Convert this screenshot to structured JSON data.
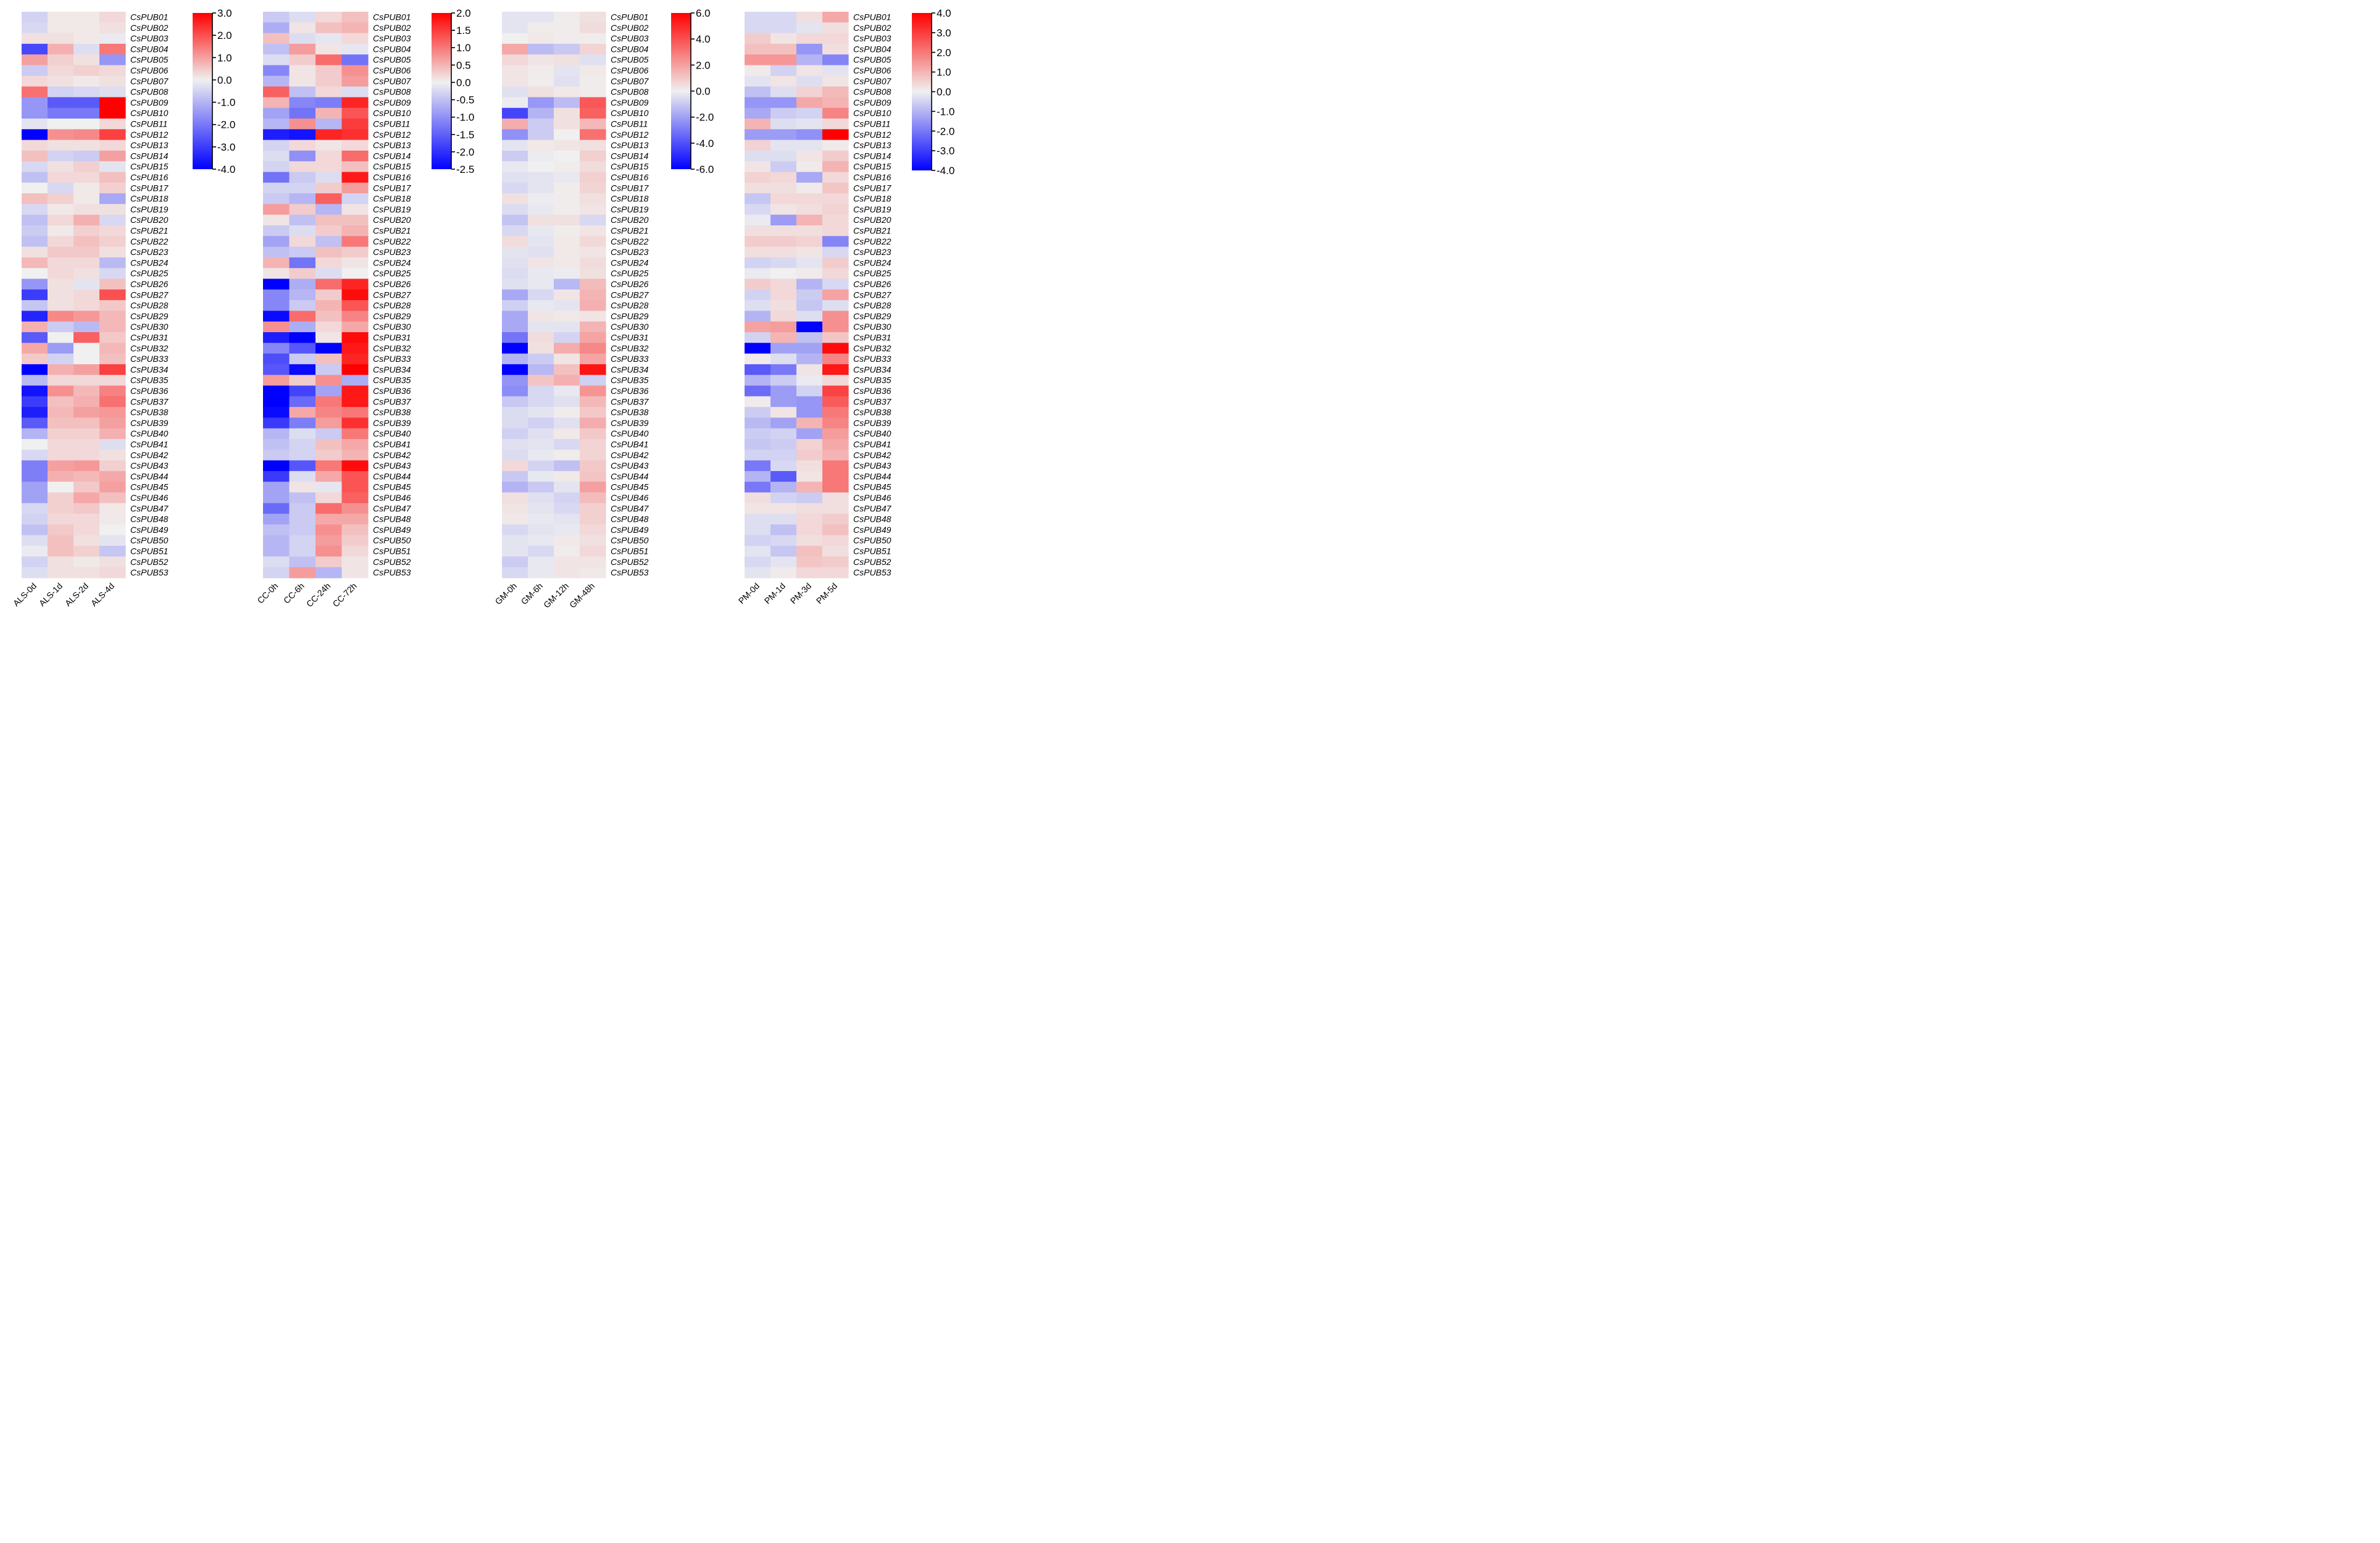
{
  "genes": [
    "CsPUB01",
    "CsPUB02",
    "CsPUB03",
    "CsPUB04",
    "CsPUB05",
    "CsPUB06",
    "CsPUB07",
    "CsPUB08",
    "CsPUB09",
    "CsPUB10",
    "CsPUB11",
    "CsPUB12",
    "CsPUB13",
    "CsPUB14",
    "CsPUB15",
    "CsPUB16",
    "CsPUB17",
    "CsPUB18",
    "CsPUB19",
    "CsPUB20",
    "CsPUB21",
    "CsPUB22",
    "CsPUB23",
    "CsPUB24",
    "CsPUB25",
    "CsPUB26",
    "CsPUB27",
    "CsPUB28",
    "CsPUB29",
    "CsPUB30",
    "CsPUB31",
    "CsPUB32",
    "CsPUB33",
    "CsPUB34",
    "CsPUB35",
    "CsPUB36",
    "CsPUB37",
    "CsPUB38",
    "CsPUB39",
    "CsPUB40",
    "CsPUB41",
    "CsPUB42",
    "CsPUB43",
    "CsPUB44",
    "CsPUB45",
    "CsPUB46",
    "CsPUB47",
    "CsPUB48",
    "CsPUB49",
    "CsPUB50",
    "CsPUB51",
    "CsPUB52",
    "CsPUB53"
  ],
  "colors": {
    "low": "#0000ff",
    "mid": "#f0f0f0",
    "high": "#ff0000"
  },
  "chart_data": [
    {
      "type": "heatmap",
      "columns": [
        "ALS-0d",
        "ALS-1d",
        "ALS-2d",
        "ALS-4d"
      ],
      "colorbar": {
        "min": -4.0,
        "max": 3.0,
        "ticks": [
          "3.0",
          "2.0",
          "1.0",
          "0.0",
          "-1.0",
          "-2.0",
          "-3.0",
          "-4.0"
        ]
      },
      "values": [
        [
          -0.5,
          0.1,
          0.1,
          0.3
        ],
        [
          -0.4,
          0.1,
          0.1,
          0.2
        ],
        [
          0.2,
          0.2,
          0.1,
          -0.1
        ],
        [
          -2.8,
          0.8,
          -0.3,
          1.5
        ],
        [
          1.0,
          0.4,
          0.2,
          -1.5
        ],
        [
          -0.6,
          0.3,
          0.4,
          0.3
        ],
        [
          0.3,
          0.2,
          0.1,
          0.2
        ],
        [
          1.6,
          -0.5,
          -0.4,
          -0.3
        ],
        [
          -1.5,
          -2.5,
          -2.5,
          3.0
        ],
        [
          -1.5,
          -2.0,
          -2.0,
          3.0
        ],
        [
          -0.2,
          0.0,
          0.0,
          0.3
        ],
        [
          -4.0,
          1.2,
          1.3,
          2.2
        ],
        [
          0.3,
          0.2,
          0.2,
          0.3
        ],
        [
          0.6,
          -0.5,
          -0.6,
          1.0
        ],
        [
          -0.4,
          0.2,
          0.4,
          -0.2
        ],
        [
          -0.8,
          0.3,
          0.3,
          0.6
        ],
        [
          0.0,
          -0.4,
          0.1,
          0.4
        ],
        [
          0.6,
          0.4,
          0.1,
          -1.2
        ],
        [
          -0.4,
          0.1,
          0.2,
          0.2
        ],
        [
          -0.8,
          0.3,
          0.8,
          -0.4
        ],
        [
          -0.6,
          0.1,
          0.4,
          0.3
        ],
        [
          -0.8,
          0.3,
          0.6,
          0.4
        ],
        [
          0.2,
          0.5,
          0.5,
          0.2
        ],
        [
          0.7,
          0.3,
          0.3,
          -0.9
        ],
        [
          0.0,
          0.3,
          0.2,
          -0.4
        ],
        [
          -1.5,
          0.2,
          -0.2,
          0.6
        ],
        [
          -3.0,
          0.2,
          0.3,
          2.0
        ],
        [
          -0.7,
          0.2,
          0.3,
          0.5
        ],
        [
          -3.4,
          1.3,
          1.1,
          0.7
        ],
        [
          0.8,
          -0.6,
          -0.9,
          0.7
        ],
        [
          -2.5,
          0.0,
          1.8,
          0.5
        ],
        [
          0.9,
          -1.4,
          0.0,
          0.7
        ],
        [
          0.5,
          -0.5,
          0.0,
          0.6
        ],
        [
          -4.0,
          0.8,
          1.0,
          2.2
        ],
        [
          -0.9,
          0.3,
          0.3,
          0.3
        ],
        [
          -3.7,
          1.2,
          0.7,
          1.4
        ],
        [
          -3.0,
          0.6,
          0.8,
          1.6
        ],
        [
          -3.5,
          0.7,
          1.0,
          1.1
        ],
        [
          -2.5,
          0.6,
          0.6,
          1.0
        ],
        [
          -1.0,
          0.4,
          0.4,
          0.8
        ],
        [
          0.0,
          0.3,
          0.3,
          -0.3
        ],
        [
          -0.4,
          0.3,
          0.3,
          0.2
        ],
        [
          -1.9,
          1.0,
          1.1,
          0.4
        ],
        [
          -1.9,
          0.8,
          0.7,
          0.9
        ],
        [
          -1.3,
          0.0,
          0.5,
          1.0
        ],
        [
          -1.3,
          0.4,
          0.9,
          0.6
        ],
        [
          -0.4,
          0.4,
          0.5,
          0.1
        ],
        [
          -0.5,
          0.3,
          0.3,
          0.1
        ],
        [
          -0.8,
          0.5,
          0.3,
          0.0
        ],
        [
          -0.3,
          0.6,
          0.2,
          -0.2
        ],
        [
          -0.1,
          0.6,
          0.4,
          -0.7
        ],
        [
          -0.5,
          0.2,
          0.1,
          0.2
        ],
        [
          -0.3,
          0.2,
          0.2,
          0.3
        ]
      ]
    },
    {
      "type": "heatmap",
      "columns": [
        "CC-0h",
        "CC-6h",
        "CC-24h",
        "CC-72h"
      ],
      "colorbar": {
        "min": -2.5,
        "max": 2.0,
        "ticks": [
          "2.0",
          "1.5",
          "1.0",
          "0.5",
          "0.0",
          "-0.5",
          "-1.0",
          "-1.5",
          "-2.0",
          "-2.5"
        ]
      },
      "values": [
        [
          -0.4,
          -0.2,
          0.2,
          0.4
        ],
        [
          -0.7,
          0.1,
          0.4,
          0.5
        ],
        [
          0.4,
          -0.2,
          -0.1,
          0.2
        ],
        [
          -0.5,
          0.7,
          0.1,
          -0.1
        ],
        [
          -0.2,
          0.3,
          1.1,
          -1.3
        ],
        [
          -1.1,
          0.1,
          0.3,
          0.8
        ],
        [
          -0.6,
          0.1,
          0.3,
          0.7
        ],
        [
          1.2,
          -0.5,
          0.2,
          -0.2
        ],
        [
          0.5,
          -1.1,
          -1.2,
          1.7
        ],
        [
          -0.8,
          -1.3,
          0.5,
          1.3
        ],
        [
          -0.6,
          0.8,
          -0.6,
          1.5
        ],
        [
          -2.2,
          -2.3,
          1.7,
          1.6
        ],
        [
          -0.3,
          0.2,
          0.1,
          0.2
        ],
        [
          -0.2,
          -1.0,
          0.2,
          1.1
        ],
        [
          -0.3,
          0.2,
          0.2,
          0.4
        ],
        [
          -1.3,
          -0.4,
          -0.2,
          1.8
        ],
        [
          -0.3,
          -0.3,
          0.3,
          0.7
        ],
        [
          -0.4,
          -0.6,
          1.2,
          -0.3
        ],
        [
          0.7,
          0.3,
          -0.6,
          0.1
        ],
        [
          0.1,
          -0.5,
          0.4,
          0.4
        ],
        [
          -0.4,
          -0.2,
          0.3,
          0.5
        ],
        [
          -0.8,
          0.2,
          -0.5,
          1.0
        ],
        [
          -0.5,
          -0.4,
          0.4,
          0.3
        ],
        [
          0.5,
          -1.3,
          0.2,
          0.1
        ],
        [
          0.1,
          0.3,
          -0.2,
          0.0
        ],
        [
          -2.5,
          -0.7,
          1.1,
          1.7
        ],
        [
          -1.1,
          -0.6,
          0.3,
          1.9
        ],
        [
          -1.1,
          -0.4,
          0.5,
          1.3
        ],
        [
          -2.4,
          1.1,
          0.4,
          0.9
        ],
        [
          0.8,
          -0.7,
          0.2,
          0.6
        ],
        [
          -2.2,
          -2.5,
          0.1,
          1.9
        ],
        [
          -1.1,
          -1.6,
          -2.5,
          1.8
        ],
        [
          -1.7,
          -0.4,
          0.4,
          1.7
        ],
        [
          -1.6,
          -2.4,
          -0.4,
          2.0
        ],
        [
          0.7,
          0.3,
          0.8,
          -0.7
        ],
        [
          -2.5,
          -1.8,
          -0.8,
          1.8
        ],
        [
          -2.5,
          -1.4,
          1.0,
          1.8
        ],
        [
          -2.4,
          0.6,
          0.9,
          1.0
        ],
        [
          -1.9,
          -1.2,
          0.7,
          1.6
        ],
        [
          -0.6,
          -0.2,
          -0.4,
          1.0
        ],
        [
          -0.5,
          -0.3,
          0.4,
          0.6
        ],
        [
          -0.4,
          -0.3,
          0.3,
          0.5
        ],
        [
          -2.5,
          -1.6,
          1.0,
          1.9
        ],
        [
          -1.9,
          -0.2,
          0.6,
          1.3
        ],
        [
          -0.8,
          0.1,
          -0.1,
          1.3
        ],
        [
          -0.8,
          -0.5,
          0.2,
          1.2
        ],
        [
          -1.4,
          -0.4,
          1.1,
          0.8
        ],
        [
          -0.8,
          -0.4,
          0.6,
          0.6
        ],
        [
          -0.5,
          -0.4,
          0.8,
          0.4
        ],
        [
          -0.6,
          -0.3,
          0.7,
          0.3
        ],
        [
          -0.6,
          -0.3,
          0.8,
          0.2
        ],
        [
          -0.2,
          -0.5,
          0.3,
          0.1
        ],
        [
          -0.3,
          0.7,
          -0.6,
          0.1
        ]
      ]
    },
    {
      "type": "heatmap",
      "columns": [
        "GM-0h",
        "GM-6h",
        "GM-12h",
        "GM-48h"
      ],
      "colorbar": {
        "min": -6.0,
        "max": 6.0,
        "ticks": [
          "6.0",
          "4.0",
          "2.0",
          "0.0",
          "-2.0",
          "-4.0",
          "-6.0"
        ]
      },
      "values": [
        [
          -0.3,
          -0.3,
          0.1,
          0.4
        ],
        [
          -0.3,
          0.1,
          0.1,
          0.5
        ],
        [
          0.0,
          0.2,
          0.1,
          0.1
        ],
        [
          1.8,
          -1.3,
          -1.0,
          0.7
        ],
        [
          0.6,
          0.3,
          0.4,
          -0.4
        ],
        [
          0.3,
          0.1,
          -0.3,
          0.2
        ],
        [
          0.3,
          0.1,
          -0.4,
          0.1
        ],
        [
          -0.4,
          0.4,
          0.2,
          0.1
        ],
        [
          -0.1,
          -2.2,
          -1.3,
          3.8
        ],
        [
          -4.3,
          -1.5,
          0.4,
          3.6
        ],
        [
          1.7,
          -0.9,
          0.4,
          1.4
        ],
        [
          -2.4,
          -0.9,
          0.0,
          3.2
        ],
        [
          -0.3,
          0.2,
          0.3,
          0.4
        ],
        [
          -0.9,
          -0.1,
          0.0,
          0.8
        ],
        [
          -0.2,
          0.0,
          0.1,
          0.5
        ],
        [
          -0.4,
          -0.3,
          -0.2,
          0.8
        ],
        [
          -0.6,
          -0.3,
          0.1,
          0.7
        ],
        [
          0.4,
          -0.1,
          0.1,
          0.4
        ],
        [
          -0.5,
          -0.2,
          0.1,
          0.3
        ],
        [
          -1.1,
          0.4,
          0.4,
          -0.6
        ],
        [
          -0.6,
          -0.2,
          0.1,
          0.3
        ],
        [
          0.5,
          -0.3,
          0.2,
          0.6
        ],
        [
          -0.3,
          -0.4,
          0.2,
          0.3
        ],
        [
          -0.4,
          0.3,
          0.2,
          0.5
        ],
        [
          -0.5,
          -0.2,
          -0.1,
          0.4
        ],
        [
          -0.4,
          -0.2,
          -1.4,
          1.3
        ],
        [
          -1.8,
          -0.6,
          0.3,
          1.5
        ],
        [
          -0.8,
          -0.2,
          -0.3,
          1.6
        ],
        [
          -1.8,
          0.3,
          0.2,
          0.3
        ],
        [
          -1.8,
          -0.3,
          -0.3,
          1.5
        ],
        [
          -3.1,
          0.5,
          -0.7,
          1.9
        ],
        [
          -6.0,
          0.4,
          1.7,
          2.6
        ],
        [
          -1.5,
          -0.9,
          0.3,
          1.9
        ],
        [
          -6.0,
          -1.4,
          1.2,
          5.5
        ],
        [
          -2.3,
          1.1,
          1.6,
          -0.8
        ],
        [
          -2.5,
          -0.6,
          -0.2,
          2.3
        ],
        [
          -1.0,
          -0.6,
          -0.4,
          1.4
        ],
        [
          -0.5,
          -0.3,
          0.1,
          1.0
        ],
        [
          -0.5,
          -0.8,
          -0.4,
          1.7
        ],
        [
          -0.8,
          -0.4,
          0.2,
          1.0
        ],
        [
          -0.4,
          -0.3,
          -0.6,
          0.7
        ],
        [
          -0.5,
          -0.2,
          0.1,
          0.7
        ],
        [
          0.6,
          -0.7,
          -1.2,
          1.0
        ],
        [
          -1.0,
          -0.2,
          0.2,
          1.1
        ],
        [
          -1.5,
          -1.0,
          -0.3,
          2.0
        ],
        [
          0.4,
          -0.4,
          -0.7,
          1.3
        ],
        [
          0.3,
          -0.3,
          -0.6,
          0.8
        ],
        [
          0.2,
          -0.2,
          -0.3,
          0.8
        ],
        [
          -0.6,
          -0.3,
          -0.2,
          0.6
        ],
        [
          -0.3,
          -0.2,
          0.2,
          0.4
        ],
        [
          -0.3,
          -0.6,
          0.1,
          0.6
        ],
        [
          -0.9,
          -0.2,
          0.3,
          0.3
        ],
        [
          -0.6,
          -0.2,
          0.3,
          0.2
        ]
      ]
    },
    {
      "type": "heatmap",
      "columns": [
        "PM-0d",
        "PM-1d",
        "PM-3d",
        "PM-5d"
      ],
      "colorbar": {
        "min": -4.0,
        "max": 4.0,
        "ticks": [
          "4.0",
          "3.0",
          "2.0",
          "1.0",
          "0.0",
          "-1.0",
          "-2.0",
          "-3.0",
          "-4.0"
        ]
      },
      "values": [
        [
          -0.4,
          -0.4,
          0.3,
          1.2
        ],
        [
          -0.4,
          -0.4,
          -0.2,
          0.3
        ],
        [
          0.6,
          0.2,
          0.4,
          0.4
        ],
        [
          0.8,
          0.8,
          -1.5,
          0.3
        ],
        [
          1.5,
          1.5,
          -1.0,
          -1.8
        ],
        [
          0.1,
          -0.5,
          0.2,
          -0.2
        ],
        [
          -0.2,
          0.2,
          -0.3,
          0.2
        ],
        [
          -0.8,
          -0.3,
          0.5,
          0.9
        ],
        [
          -1.5,
          -1.5,
          1.2,
          1.0
        ],
        [
          -1.2,
          -0.6,
          -0.5,
          1.8
        ],
        [
          1.0,
          -0.3,
          -0.2,
          0.4
        ],
        [
          -1.4,
          -1.4,
          -1.6,
          4.0
        ],
        [
          0.5,
          -0.2,
          -0.2,
          0.1
        ],
        [
          -0.3,
          -0.3,
          0.2,
          0.6
        ],
        [
          0.2,
          -0.6,
          0.1,
          1.0
        ],
        [
          0.5,
          0.4,
          -1.2,
          0.4
        ],
        [
          0.3,
          0.3,
          0.1,
          0.7
        ],
        [
          -0.7,
          0.4,
          0.4,
          0.4
        ],
        [
          -0.4,
          0.2,
          0.3,
          0.5
        ],
        [
          -0.1,
          -1.4,
          1.0,
          0.4
        ],
        [
          0.3,
          0.3,
          0.3,
          0.4
        ],
        [
          0.6,
          0.6,
          0.5,
          -1.8
        ],
        [
          0.3,
          0.3,
          0.2,
          -0.4
        ],
        [
          -0.5,
          -0.4,
          -0.2,
          0.6
        ],
        [
          -0.1,
          0.0,
          0.1,
          0.4
        ],
        [
          0.6,
          0.4,
          -1.0,
          -0.4
        ],
        [
          -0.5,
          0.4,
          -0.6,
          1.3
        ],
        [
          -0.3,
          0.3,
          -0.7,
          -0.3
        ],
        [
          -1.0,
          0.4,
          -0.3,
          1.6
        ],
        [
          1.3,
          1.4,
          -4.0,
          1.6
        ],
        [
          -0.5,
          1.0,
          -0.8,
          0.7
        ],
        [
          -4.0,
          -1.3,
          -1.3,
          3.8
        ],
        [
          0.1,
          -0.3,
          -1.0,
          1.8
        ],
        [
          -2.5,
          -2.0,
          0.2,
          3.6
        ],
        [
          -1.0,
          -0.6,
          -0.1,
          0.4
        ],
        [
          -2.2,
          -1.4,
          -0.5,
          2.9
        ],
        [
          0.1,
          -1.4,
          -1.5,
          2.5
        ],
        [
          -0.6,
          0.2,
          -1.5,
          2.0
        ],
        [
          -0.9,
          -1.3,
          1.0,
          1.8
        ],
        [
          -0.6,
          -0.5,
          -1.3,
          1.4
        ],
        [
          -0.7,
          -0.6,
          0.5,
          1.2
        ],
        [
          -0.5,
          -0.5,
          0.6,
          1.0
        ],
        [
          -2.0,
          -0.4,
          0.3,
          2.0
        ],
        [
          -1.0,
          -2.5,
          0.2,
          2.0
        ],
        [
          -2.0,
          -1.0,
          1.0,
          2.0
        ],
        [
          0.3,
          -0.5,
          -0.6,
          0.3
        ],
        [
          0.2,
          0.2,
          0.3,
          0.3
        ],
        [
          -0.3,
          -0.3,
          0.4,
          0.6
        ],
        [
          -0.3,
          -0.8,
          0.4,
          0.8
        ],
        [
          -0.5,
          -0.4,
          0.3,
          0.4
        ],
        [
          -0.2,
          -0.7,
          0.8,
          0.3
        ],
        [
          -0.4,
          -0.2,
          0.7,
          0.6
        ],
        [
          -0.2,
          0.1,
          0.4,
          0.4
        ]
      ]
    }
  ]
}
